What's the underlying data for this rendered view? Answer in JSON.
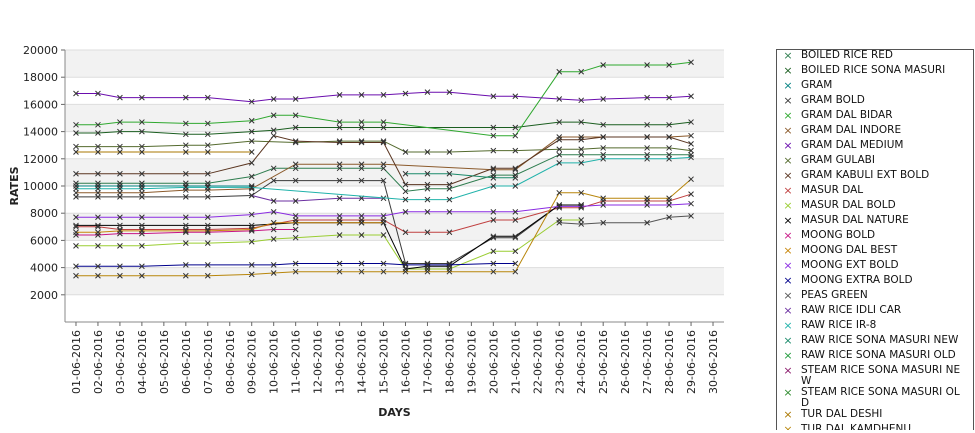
{
  "chart_data": {
    "type": "line",
    "title": "",
    "xlabel": "DAYS",
    "ylabel": "RATES",
    "ylim": [
      0,
      20000
    ],
    "yticks": [
      2000,
      4000,
      6000,
      8000,
      10000,
      12000,
      14000,
      16000,
      18000,
      20000
    ],
    "grid": "horizontal-bands",
    "legend_position": "right",
    "categories": [
      "01-06-2016",
      "02-06-2016",
      "03-06-2016",
      "04-06-2016",
      "05-06-2016",
      "06-06-2016",
      "07-06-2016",
      "08-06-2016",
      "09-06-2016",
      "10-06-2016",
      "11-06-2016",
      "12-06-2016",
      "13-06-2016",
      "14-06-2016",
      "15-06-2016",
      "16-06-2016",
      "17-06-2016",
      "18-06-2016",
      "19-06-2016",
      "20-06-2016",
      "21-06-2016",
      "22-06-2016",
      "23-06-2016",
      "24-06-2016",
      "25-06-2016",
      "26-06-2016",
      "27-06-2016",
      "28-06-2016",
      "29-06-2016",
      "30-06-2016"
    ],
    "series": [
      {
        "name": "BOILED RICE RED",
        "color": "#2e7d4f",
        "values": [
          10200,
          10200,
          10200,
          10200,
          null,
          10200,
          10200,
          null,
          10700,
          11300,
          11300,
          null,
          11300,
          11300,
          11300,
          9600,
          9800,
          9800,
          null,
          10800,
          10800,
          null,
          12300,
          12300,
          12300,
          null,
          12300,
          12300,
          12300,
          null
        ]
      },
      {
        "name": "BOILED RICE SONA MASURI",
        "color": "#1b5e20",
        "values": [
          13900,
          13900,
          14000,
          14000,
          null,
          13800,
          13800,
          null,
          14000,
          14100,
          14300,
          null,
          14300,
          14300,
          14300,
          null,
          null,
          null,
          null,
          14300,
          14300,
          null,
          14700,
          14700,
          14500,
          null,
          14500,
          14500,
          14700,
          null
        ]
      },
      {
        "name": "GRAM",
        "color": "#008080",
        "values": [
          10000,
          10000,
          10000,
          10000,
          null,
          10000,
          10000,
          null,
          10000,
          null,
          null,
          null,
          null,
          null,
          null,
          null,
          null,
          null,
          null,
          null,
          null,
          null,
          null,
          null,
          null,
          null,
          null,
          null,
          null,
          null
        ]
      },
      {
        "name": "GRAM BOLD",
        "color": "#3a3a3a",
        "values": [
          9200,
          9200,
          9200,
          9200,
          null,
          9200,
          9200,
          null,
          9300,
          10400,
          10400,
          null,
          10400,
          10400,
          10400,
          4300,
          4300,
          4300,
          null,
          6200,
          6200,
          null,
          8600,
          8600,
          null,
          null,
          null,
          null,
          null,
          null
        ]
      },
      {
        "name": "GRAM DAL BIDAR",
        "color": "#2fa82f",
        "values": [
          14500,
          14500,
          14700,
          14700,
          null,
          14600,
          14600,
          null,
          14800,
          15200,
          15200,
          null,
          14700,
          14700,
          14700,
          null,
          null,
          null,
          null,
          13700,
          13700,
          null,
          18400,
          18400,
          18900,
          null,
          18900,
          18900,
          19100,
          null
        ]
      },
      {
        "name": "GRAM DAL INDORE",
        "color": "#8b5a2b",
        "values": [
          9500,
          9500,
          9500,
          9500,
          null,
          9700,
          9700,
          null,
          9800,
          null,
          11600,
          null,
          11600,
          11600,
          11600,
          null,
          null,
          null,
          null,
          11200,
          11200,
          null,
          13600,
          13600,
          13600,
          null,
          13600,
          13600,
          13700,
          null
        ]
      },
      {
        "name": "GRAM DAL MEDIUM",
        "color": "#6a0dad",
        "values": [
          16800,
          16800,
          16500,
          16500,
          null,
          16500,
          16500,
          null,
          16200,
          16400,
          16400,
          null,
          16700,
          16700,
          16700,
          16800,
          16900,
          16900,
          null,
          16600,
          16600,
          null,
          16400,
          16300,
          16400,
          null,
          16500,
          16500,
          16600,
          null
        ]
      },
      {
        "name": "GRAM GULABI",
        "color": "#556b2f",
        "values": [
          12900,
          12900,
          12900,
          12900,
          null,
          13000,
          13000,
          null,
          13300,
          null,
          13200,
          null,
          13300,
          13300,
          13300,
          12500,
          12500,
          12500,
          null,
          12600,
          12600,
          null,
          12700,
          12700,
          12800,
          null,
          12800,
          12800,
          12600,
          null
        ]
      },
      {
        "name": "GRAM KABULI EXT BOLD",
        "color": "#5a3520",
        "values": [
          10900,
          10900,
          10900,
          10900,
          null,
          10900,
          10900,
          null,
          11700,
          13700,
          13300,
          null,
          13200,
          13200,
          13200,
          10100,
          10100,
          10100,
          null,
          11300,
          11300,
          null,
          13400,
          13400,
          13600,
          null,
          13600,
          13600,
          13100,
          null
        ]
      },
      {
        "name": "MASUR DAL",
        "color": "#c04040",
        "values": [
          7000,
          7000,
          6800,
          6800,
          null,
          6800,
          6800,
          null,
          6900,
          null,
          7500,
          null,
          7500,
          7500,
          7500,
          6600,
          6600,
          6600,
          null,
          7500,
          7500,
          null,
          8400,
          8400,
          8900,
          null,
          8900,
          8900,
          9400,
          null
        ]
      },
      {
        "name": "MASUR DAL BOLD",
        "color": "#9acd32",
        "values": [
          5600,
          5600,
          5600,
          5600,
          null,
          5800,
          5800,
          null,
          5900,
          6100,
          6200,
          null,
          6400,
          6400,
          6400,
          3900,
          3900,
          3900,
          null,
          5200,
          5200,
          null,
          7500,
          7500,
          null,
          null,
          null,
          null,
          null,
          null
        ]
      },
      {
        "name": "MASUR DAL NATURE",
        "color": "#000000",
        "values": [
          7100,
          7100,
          7100,
          7100,
          null,
          7100,
          7100,
          null,
          7100,
          null,
          7300,
          null,
          7300,
          7300,
          7300,
          3900,
          4100,
          4100,
          null,
          6300,
          6300,
          null,
          8600,
          8600,
          null,
          null,
          null,
          null,
          null,
          null
        ]
      },
      {
        "name": "MOONG BOLD",
        "color": "#c71585",
        "values": [
          6400,
          6400,
          6500,
          6500,
          null,
          6600,
          6600,
          null,
          6700,
          6800,
          6800,
          null,
          null,
          null,
          null,
          null,
          null,
          null,
          null,
          null,
          null,
          null,
          null,
          null,
          null,
          null,
          null,
          null,
          null,
          null
        ]
      },
      {
        "name": "MOONG DAL BEST",
        "color": "#c8860b",
        "values": [
          6600,
          6600,
          6700,
          6700,
          null,
          6700,
          6700,
          null,
          6800,
          7300,
          7300,
          null,
          7300,
          7300,
          7300,
          null,
          null,
          null,
          null,
          null,
          null,
          null,
          null,
          null,
          null,
          null,
          null,
          null,
          null,
          null
        ]
      },
      {
        "name": "MOONG EXT BOLD",
        "color": "#8a2be2",
        "values": [
          7700,
          7700,
          7700,
          7700,
          null,
          7700,
          7700,
          null,
          7900,
          8100,
          7800,
          null,
          7800,
          7800,
          7800,
          8100,
          8100,
          8100,
          null,
          8100,
          8100,
          null,
          8500,
          8500,
          8600,
          null,
          8600,
          8600,
          8700,
          null
        ]
      },
      {
        "name": "MOONG EXTRA BOLD",
        "color": "#00008b",
        "values": [
          4100,
          4100,
          4100,
          4100,
          null,
          4200,
          4200,
          null,
          4200,
          4200,
          4300,
          null,
          4300,
          4300,
          4300,
          4200,
          4200,
          4200,
          null,
          4300,
          4300,
          null,
          null,
          null,
          null,
          null,
          null,
          null,
          null,
          null
        ]
      },
      {
        "name": "PEAS GREEN",
        "color": "#555555",
        "values": [
          null,
          null,
          null,
          null,
          null,
          null,
          null,
          null,
          null,
          null,
          null,
          null,
          null,
          null,
          null,
          null,
          null,
          null,
          null,
          null,
          null,
          null,
          7300,
          7200,
          7300,
          null,
          7300,
          7700,
          7800,
          null
        ]
      },
      {
        "name": "RAW RICE IDLI CAR",
        "color": "#6b2fa0",
        "values": [
          null,
          null,
          null,
          null,
          null,
          null,
          null,
          null,
          9300,
          8900,
          8900,
          null,
          9100,
          9100,
          9100,
          null,
          null,
          null,
          null,
          null,
          null,
          null,
          null,
          null,
          null,
          null,
          null,
          null,
          null,
          null
        ]
      },
      {
        "name": "RAW RICE IR-8",
        "color": "#20b2aa",
        "values": [
          9800,
          9800,
          9800,
          9800,
          null,
          9900,
          9900,
          null,
          9900,
          null,
          null,
          null,
          null,
          null,
          null,
          9000,
          9000,
          9000,
          null,
          10000,
          10000,
          null,
          11700,
          11700,
          12000,
          null,
          12000,
          12000,
          12100,
          null
        ]
      },
      {
        "name": "RAW RICE SONA MASURI NEW",
        "color": "#1a8a6a",
        "values": [
          null,
          null,
          null,
          null,
          null,
          null,
          null,
          null,
          null,
          null,
          null,
          null,
          null,
          null,
          null,
          10900,
          10900,
          10900,
          null,
          10600,
          10600,
          null,
          null,
          null,
          null,
          null,
          null,
          null,
          null,
          null
        ]
      },
      {
        "name": "RAW RICE SONA MASURI OLD",
        "color": "#1f9a3a",
        "values": [
          null,
          null,
          null,
          null,
          null,
          null,
          null,
          null,
          null,
          null,
          null,
          null,
          null,
          null,
          null,
          null,
          null,
          null,
          null,
          null,
          null,
          null,
          null,
          null,
          null,
          null,
          null,
          null,
          null,
          null
        ]
      },
      {
        "name": "STEAM RICE SONA MASURI NEW",
        "color": "#8b1a6b",
        "values": [
          null,
          null,
          null,
          null,
          null,
          null,
          null,
          null,
          null,
          null,
          null,
          null,
          null,
          null,
          null,
          null,
          null,
          null,
          null,
          null,
          null,
          null,
          null,
          null,
          null,
          null,
          null,
          null,
          null,
          null
        ]
      },
      {
        "name": "STEAM RICE SONA MASURI OLD",
        "color": "#2e8b2e",
        "values": [
          null,
          null,
          null,
          null,
          null,
          null,
          null,
          null,
          null,
          null,
          null,
          null,
          null,
          null,
          null,
          null,
          null,
          null,
          null,
          null,
          null,
          null,
          null,
          null,
          null,
          null,
          null,
          null,
          null,
          null
        ]
      },
      {
        "name": "TUR DAL DESHI",
        "color": "#aa7700",
        "values": [
          12500,
          12500,
          12500,
          12500,
          null,
          12500,
          12500,
          null,
          12500,
          null,
          null,
          null,
          null,
          null,
          null,
          null,
          null,
          null,
          null,
          null,
          null,
          null,
          null,
          null,
          null,
          null,
          null,
          null,
          null,
          null
        ]
      },
      {
        "name": "TUR DAL KAMDHENU",
        "color": "#b8860b",
        "values": [
          3400,
          3400,
          3400,
          3400,
          null,
          3400,
          3400,
          null,
          3500,
          3600,
          3700,
          null,
          3700,
          3700,
          3700,
          3700,
          3700,
          3700,
          null,
          3700,
          3700,
          null,
          9500,
          9500,
          9100,
          null,
          9100,
          9100,
          10500,
          null
        ]
      }
    ]
  }
}
